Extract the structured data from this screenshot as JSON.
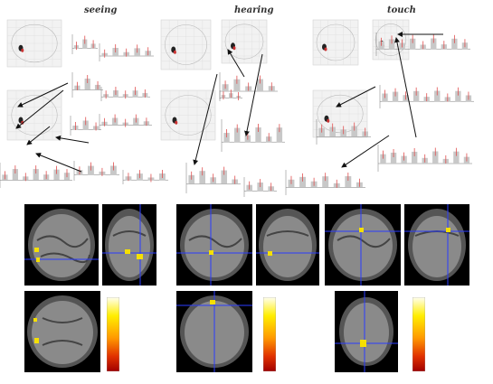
{
  "panels": [
    {
      "title": "seeing"
    },
    {
      "title": "hearing"
    },
    {
      "title": "touch"
    }
  ],
  "colors": {
    "bar_fill": "#c8c8c8",
    "error_bar": "#e05050",
    "arrow": "#111111",
    "crosshair": "#2a3cff",
    "activation": "#f5e000"
  },
  "colorbar": {
    "gradient": [
      "#fffff0",
      "#ffee00",
      "#ff9900",
      "#e03000",
      "#a00000"
    ]
  },
  "icons": [
    "arrow-icon",
    "glass-brain-icon",
    "mri-slice-icon"
  ]
}
